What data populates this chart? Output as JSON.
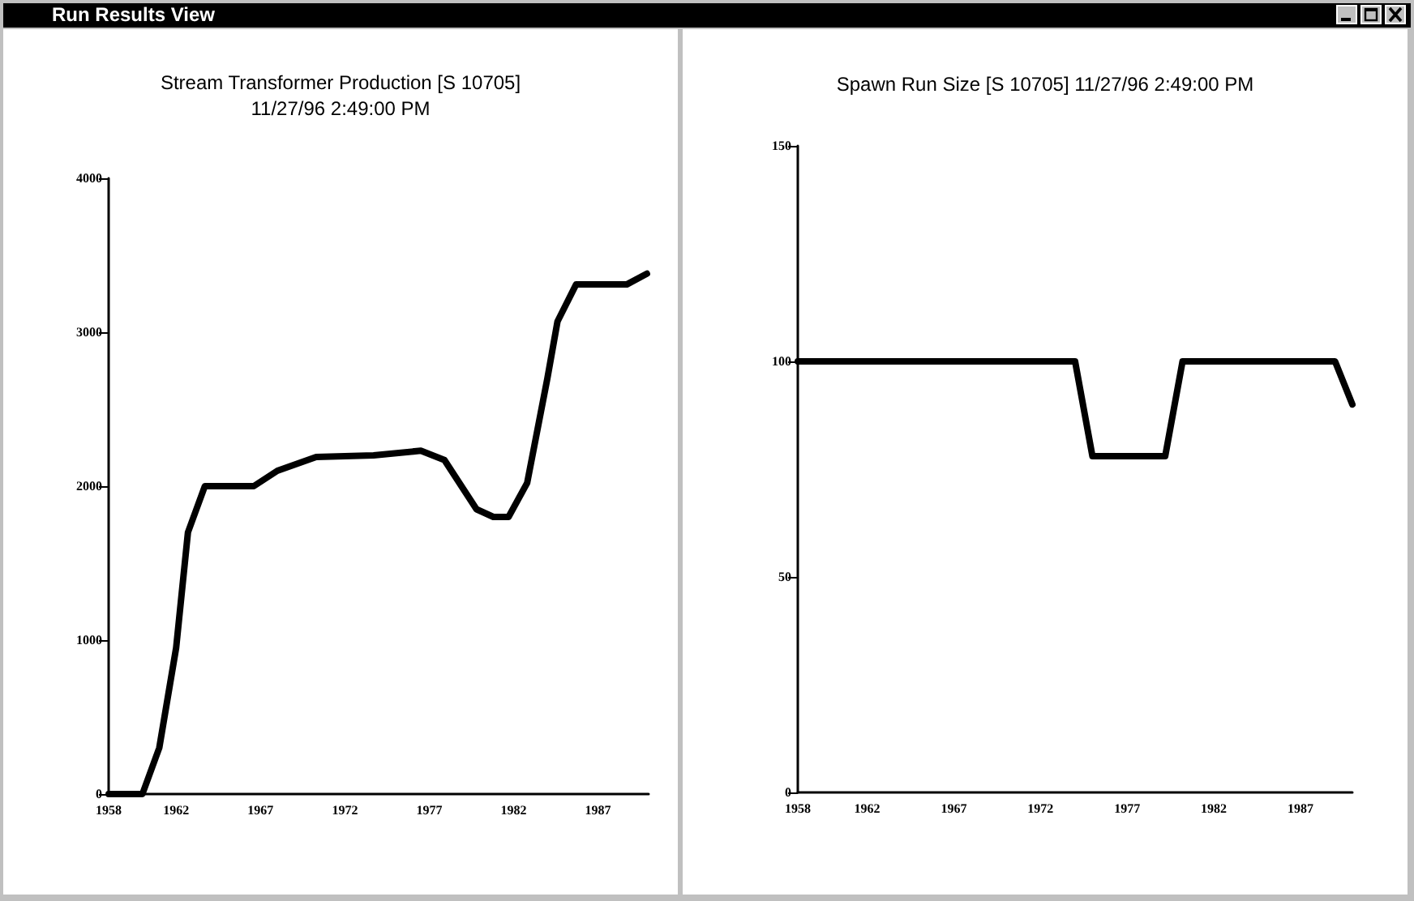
{
  "chart_data": [
    {
      "type": "line",
      "title": "Stream Transformer Production [S 10705]",
      "subtitle": "11/27/96 2:49:00 PM",
      "annotations": [
        "Run Results View"
      ],
      "x": [
        1958,
        1960,
        1961,
        1962,
        1962.7,
        1963.7,
        1966.6,
        1968,
        1970.3,
        1973.7,
        1976.5,
        1977.9,
        1979.8,
        1980.8,
        1981.7,
        1982.8,
        1984,
        1984.6,
        1985.7,
        1988.7,
        1989.9
      ],
      "values": [
        0,
        0,
        300,
        950,
        1700,
        2000,
        2000,
        2100,
        2190,
        2200,
        2230,
        2170,
        1850,
        1800,
        1800,
        2020,
        2700,
        3070,
        3310,
        3310,
        3380
      ],
      "color": "#000000",
      "xlim": [
        1958,
        1990
      ],
      "xticks": [
        1958,
        1962,
        1967,
        1972,
        1977,
        1982,
        1987
      ],
      "ylim": [
        0,
        4000
      ],
      "yticks": [
        0,
        1000,
        2000,
        3000,
        4000
      ],
      "grid": false,
      "marker": "none",
      "line_style": "solid"
    },
    {
      "type": "line",
      "title": "Spawn Run Size [S 10705] 11/27/96 2:49:00 PM",
      "x": [
        1958,
        1974,
        1975,
        1979.2,
        1980.2,
        1989,
        1990
      ],
      "values": [
        100,
        100,
        78,
        78,
        100,
        100,
        90
      ],
      "color": "#000000",
      "xlim": [
        1958,
        1990
      ],
      "xticks": [
        1958,
        1962,
        1967,
        1972,
        1977,
        1982,
        1987
      ],
      "ylim": [
        0,
        150
      ],
      "yticks": [
        0,
        50,
        100,
        150
      ],
      "grid": false,
      "marker": "none",
      "line_style": "solid"
    }
  ]
}
